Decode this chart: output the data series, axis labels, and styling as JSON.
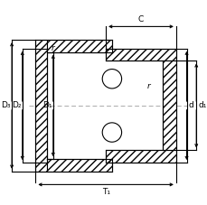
{
  "bg_color": "#ffffff",
  "line_color": "#000000",
  "centerline_color": "#aaaaaa",
  "labels": {
    "C": "C",
    "r_top": "r",
    "r_right": "r",
    "T1": "T₁",
    "D3": "D₃",
    "D2": "D₂",
    "D1": "D₁",
    "d": "d",
    "d1": "d₁"
  },
  "figsize": [
    2.3,
    2.27
  ],
  "dpi": 100
}
